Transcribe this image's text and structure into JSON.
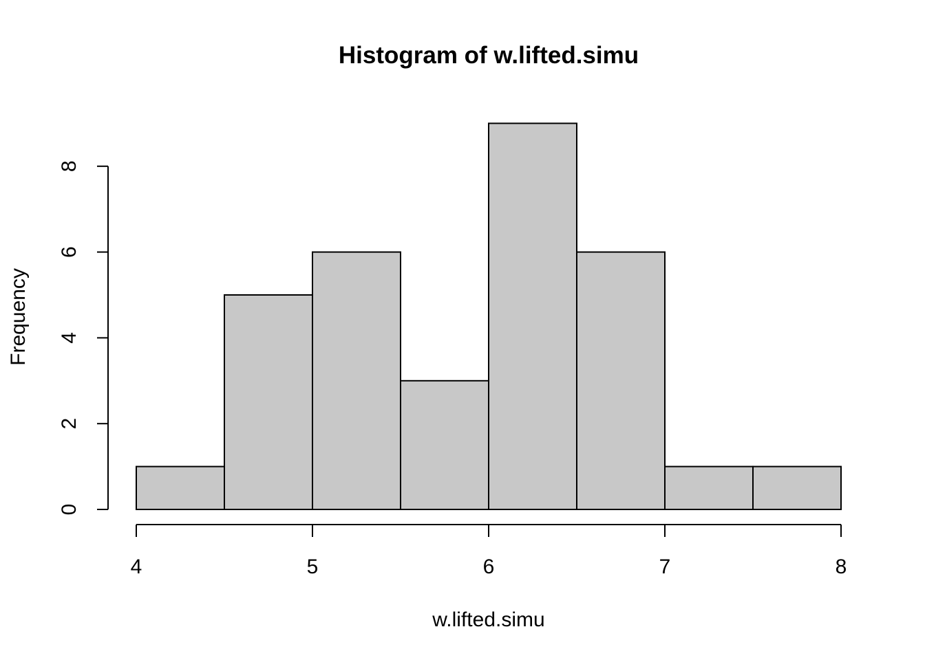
{
  "chart_data": {
    "type": "bar",
    "subtype": "histogram",
    "title": "Histogram of w.lifted.simu",
    "xlabel": "w.lifted.simu",
    "ylabel": "Frequency",
    "bins": [
      {
        "start": 4.0,
        "end": 4.5,
        "count": 1
      },
      {
        "start": 4.5,
        "end": 5.0,
        "count": 5
      },
      {
        "start": 5.0,
        "end": 5.5,
        "count": 6
      },
      {
        "start": 5.5,
        "end": 6.0,
        "count": 3
      },
      {
        "start": 6.0,
        "end": 6.5,
        "count": 9
      },
      {
        "start": 6.5,
        "end": 7.0,
        "count": 6
      },
      {
        "start": 7.0,
        "end": 7.5,
        "count": 1
      },
      {
        "start": 7.5,
        "end": 8.0,
        "count": 1
      }
    ],
    "xlim": [
      4,
      8
    ],
    "ylim": [
      0,
      9
    ],
    "xticks": [
      "4",
      "5",
      "6",
      "7",
      "8"
    ],
    "yticks": [
      "0",
      "2",
      "4",
      "6",
      "8"
    ],
    "grid": false,
    "legend": "none",
    "bar_fill": "#c8c8c8",
    "bar_stroke": "#000000"
  }
}
